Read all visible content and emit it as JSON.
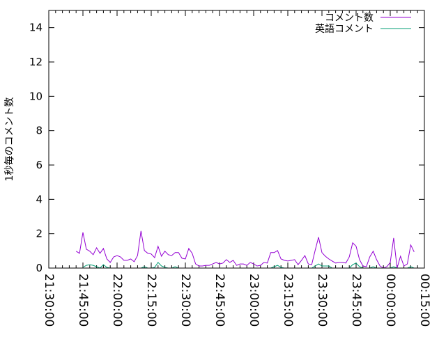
{
  "chart_data": {
    "type": "line",
    "title": "",
    "xlabel": "",
    "ylabel": "1秒毎のコメント数",
    "xlim": [
      "21:30:00",
      "00:15:00"
    ],
    "ylim": [
      0,
      15
    ],
    "grid": false,
    "legend_position": "top-right",
    "x_ticks": [
      "21:30:00",
      "21:45:00",
      "22:00:00",
      "22:15:00",
      "22:30:00",
      "22:45:00",
      "23:00:00",
      "23:15:00",
      "23:30:00",
      "23:45:00",
      "00:00:00",
      "00:15:00"
    ],
    "y_ticks": [
      "0",
      "2",
      "4",
      "6",
      "8",
      "10",
      "12",
      "14"
    ],
    "series_colors": [
      "#9400d3",
      "#009e73"
    ],
    "x_start": "21:42:00",
    "x_step_seconds": 90,
    "series": [
      {
        "name": "コメント数",
        "color": "#9400d3",
        "values": [
          0.98,
          0.86,
          2.08,
          1.1,
          0.98,
          0.78,
          1.18,
          0.86,
          1.14,
          0.53,
          0.33,
          0.65,
          0.73,
          0.65,
          0.45,
          0.45,
          0.53,
          0.37,
          0.73,
          2.16,
          1.02,
          0.86,
          0.82,
          0.61,
          1.27,
          0.69,
          0.98,
          0.78,
          0.73,
          0.9,
          0.9,
          0.57,
          0.53,
          1.14,
          0.86,
          0.24,
          0.12,
          0.12,
          0.16,
          0.16,
          0.24,
          0.33,
          0.24,
          0.29,
          0.49,
          0.33,
          0.45,
          0.16,
          0.24,
          0.24,
          0.16,
          0.33,
          0.24,
          0.12,
          0.16,
          0.33,
          0.29,
          0.9,
          0.9,
          1.02,
          0.53,
          0.45,
          0.41,
          0.45,
          0.49,
          0.2,
          0.45,
          0.73,
          0.24,
          0.2,
          1.02,
          1.8,
          0.9,
          0.69,
          0.53,
          0.41,
          0.29,
          0.33,
          0.33,
          0.29,
          0.65,
          1.47,
          1.27,
          0.49,
          0.12,
          0.08,
          0.65,
          0.98,
          0.49,
          0.12,
          0,
          0.08,
          0.33,
          1.75,
          0,
          0.69,
          0.12,
          0.24,
          1.35,
          0.94
        ]
      },
      {
        "name": "英語コメント",
        "color": "#009e73",
        "values": [
          null,
          null,
          0.04,
          0.16,
          0.2,
          0.16,
          0.08,
          0,
          0.2,
          0.04,
          0,
          0,
          0,
          0,
          0,
          0,
          0,
          0,
          0,
          0,
          0.08,
          0,
          0,
          0.04,
          0.33,
          0.12,
          0.04,
          0,
          0,
          0.08,
          0,
          0,
          0,
          0,
          0,
          0,
          0,
          0,
          0,
          0,
          0,
          0,
          0,
          0,
          0,
          0,
          0,
          0,
          0,
          0,
          0,
          0,
          0,
          0,
          0,
          0,
          0,
          0,
          0.08,
          0.16,
          0.04,
          0,
          0,
          0,
          0,
          0,
          0,
          0,
          0,
          0,
          0.12,
          0.24,
          0.12,
          0.12,
          0.12,
          0,
          0,
          0,
          0,
          0,
          0,
          0.2,
          0.29,
          0.08,
          0,
          0,
          0,
          0.08,
          0,
          0,
          0,
          0,
          0,
          0.08,
          0,
          0,
          0,
          0,
          0.08,
          0
        ]
      }
    ]
  }
}
